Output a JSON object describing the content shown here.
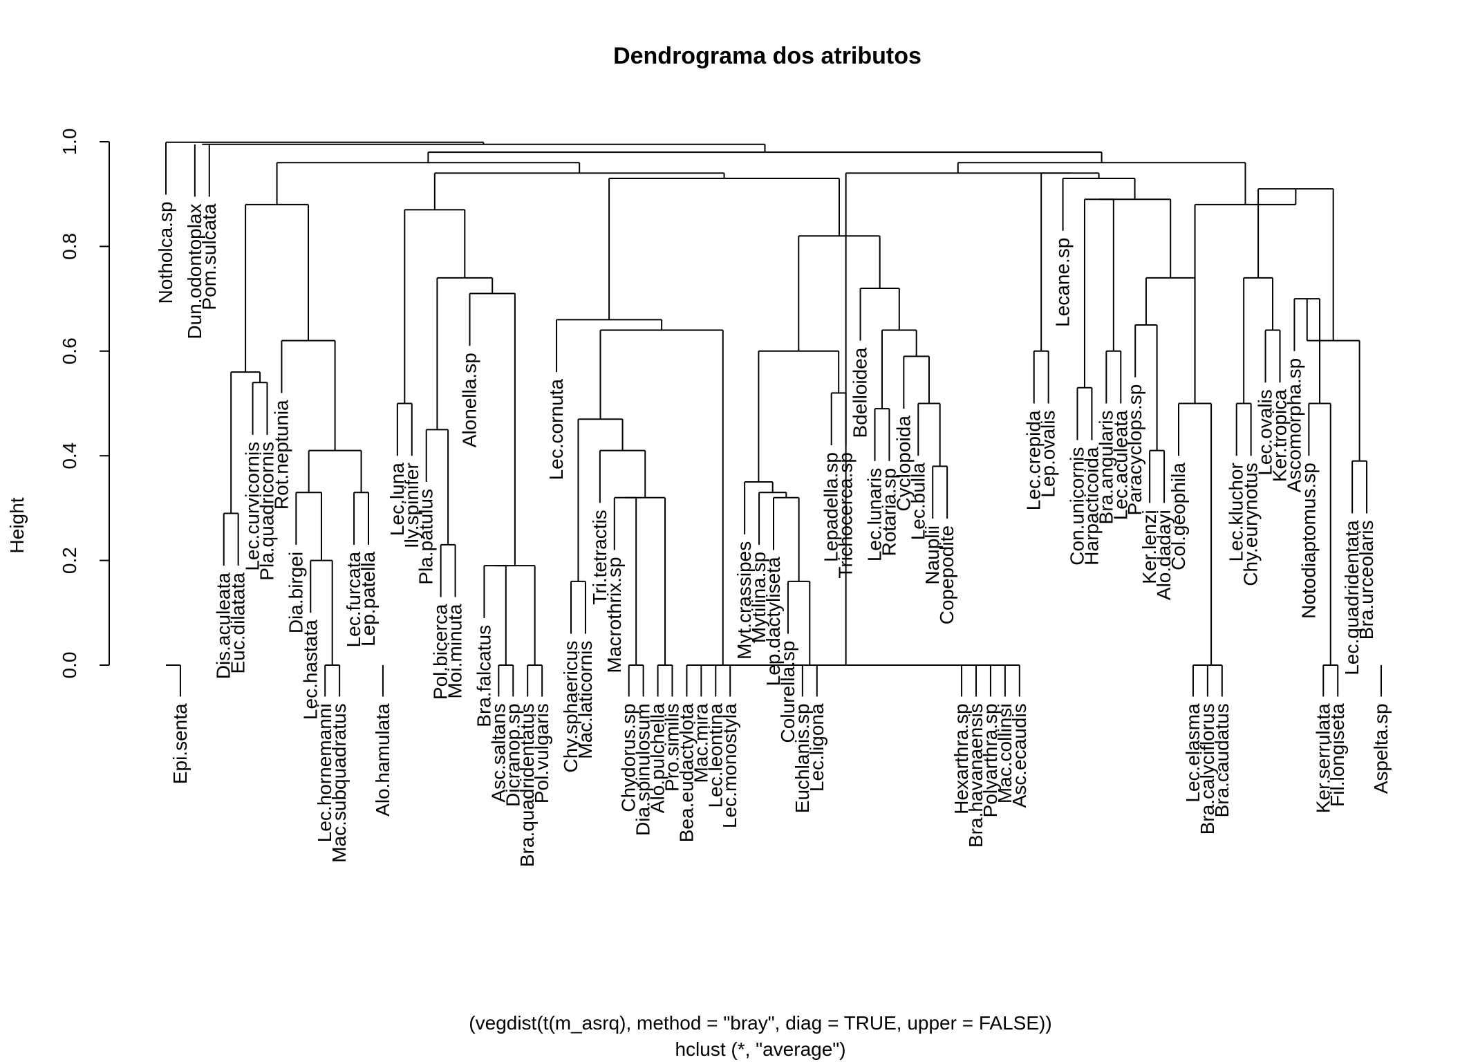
{
  "chart_data": {
    "type": "dendrogram",
    "title": "Dendrograma dos atributos",
    "ylabel": "Height",
    "xlabel_line1": "(vegdist(t(m_asrq), method = \"bray\", diag = TRUE, upper = FALSE))",
    "xlabel_line2": "hclust (*, \"average\")",
    "ylim": [
      0,
      1
    ],
    "yticks": [
      {
        "value": 0.0,
        "label": "0.0"
      },
      {
        "value": 0.2,
        "label": "0.2"
      },
      {
        "value": 0.4,
        "label": "0.4"
      },
      {
        "value": 0.6,
        "label": "0.6"
      },
      {
        "value": 0.8,
        "label": "0.8"
      },
      {
        "value": 1.0,
        "label": "1.0"
      }
    ],
    "leaves": [
      "Notholca.sp",
      "Epi.senta",
      "Dun.odontoplax",
      "Pom.sulcata",
      "Dis.aculeata",
      "Euc.dilatata",
      "Lec.curvicornis",
      "Pla.quadricornis",
      "Rot.neptunia",
      "Dia.birgei",
      "Lec.hastata",
      "Lec.hornemanni",
      "Mac.subquadratus",
      "Lec.furcata",
      "Lep.patella",
      "Alo.hamulata",
      "Lec.luna",
      "Ily.spinifer",
      "Pla.patulus",
      "Pol.bicerca",
      "Moi.minuta",
      "Alonella.sp",
      "Bra.falcatus",
      "Asc.saltans",
      "Dicranop.sp",
      "Bra.quadridentatus",
      "Pol.vulgaris",
      "Lec.cornuta",
      "Chy.sphaericus",
      "Mac.laticornis",
      "Tri.tetractis",
      "Macrothrix.sp",
      "Chydorus.sp",
      "Dia.spinulosum",
      "Alo.pulchella",
      "Pro.similis",
      "Bea.eudactylota",
      "Mac.mira",
      "Lec.leontina",
      "Lec.monostyla",
      "Myt.crassipes",
      "Mytilina.sp",
      "Lep.dactyliseta",
      "Colurella.sp",
      "Euchlanis.sp",
      "Lec.ligona",
      "Lepadella.sp",
      "Trichocerca.sp",
      "Bdelloidea",
      "Lec.lunaris",
      "Rotaria.sp",
      "Cyclopoida",
      "Lec.bulla",
      "Nauplii",
      "Copepodite",
      "Hexarthra.sp",
      "Bra.havanaensis",
      "Polyarthra.sp",
      "Mac.collinsi",
      "Asc.ecaudis",
      "Lec.crepida",
      "Lep.ovalis",
      "Lecane.sp",
      "Con.unicornis",
      "Harpacticoida",
      "Bra.angularis",
      "Lec.aculeata",
      "Paracyclops.sp",
      "Ker.lenzi",
      "Alo.dadayi",
      "Col.geophila",
      "Lec.elasma",
      "Bra.calyciflorus",
      "Bra.caudatus",
      "Lec.kluchor",
      "Chy.eurynotus",
      "Lec.ovalis",
      "Ker.tropica",
      "Ascomorpha.sp",
      "Notodiaptomus.sp",
      "Ker.serrulata",
      "Fil.longiseta",
      "Lec.quadridentata",
      "Bra.urceolaris",
      "Aspelta.sp"
    ],
    "merges": [
      [
        0,
        1,
        0.0
      ],
      [
        23,
        24,
        0.0
      ],
      [
        25,
        26,
        0.0
      ],
      [
        32,
        33,
        0.0
      ],
      [
        34,
        35,
        0.0
      ],
      [
        36,
        37,
        0.0
      ],
      [
        55,
        56,
        0.0
      ],
      [
        57,
        58,
        0.0
      ],
      [
        59,
        "m7",
        0.0
      ],
      [
        "m6",
        "m8",
        0.0
      ],
      [
        71,
        72,
        0.0
      ],
      [
        73,
        "m11",
        0.0
      ],
      [
        80,
        81,
        0.0
      ],
      [
        38,
        39,
        0.0
      ],
      [
        4,
        5,
        0.29
      ],
      [
        6,
        7,
        0.54
      ],
      [
        "m15",
        "m16",
        0.56
      ],
      [
        11,
        12,
        0.0
      ],
      [
        10,
        "m18",
        0.2
      ],
      [
        9,
        "m19",
        0.33
      ],
      [
        13,
        14,
        0.33
      ],
      [
        "m20",
        "m21",
        0.41
      ],
      [
        8,
        "m22",
        0.62
      ],
      [
        "m17",
        "m23",
        0.88
      ],
      [
        16,
        17,
        0.5
      ],
      [
        19,
        20,
        0.23
      ],
      [
        18,
        "m26",
        0.45
      ],
      [
        22,
        "m2",
        0.19
      ],
      [
        "m28",
        "m3",
        0.19
      ],
      [
        21,
        "m29",
        0.71
      ],
      [
        "m27",
        "m30",
        0.74
      ],
      [
        "m25",
        "m31",
        0.87
      ],
      [
        28,
        29,
        0.16
      ],
      [
        31,
        "m4",
        0.32
      ],
      [
        "m5",
        "m34",
        0.32
      ],
      [
        30,
        "m35",
        0.41
      ],
      [
        "m33",
        "m36",
        0.47
      ],
      [
        "m37",
        "m14",
        0.64
      ],
      [
        27,
        "m38",
        0.66
      ],
      [
        44,
        45,
        0.0
      ],
      [
        43,
        "m40",
        0.16
      ],
      [
        42,
        "m41",
        0.32
      ],
      [
        41,
        "m42",
        0.33
      ],
      [
        40,
        "m43",
        0.35
      ],
      [
        46,
        47,
        0.52
      ],
      [
        "m44",
        "m45",
        0.6
      ],
      [
        53,
        54,
        0.38
      ],
      [
        52,
        "m47",
        0.5
      ],
      [
        51,
        "m48",
        0.59
      ],
      [
        49,
        50,
        0.49
      ],
      [
        "m50",
        "m49",
        0.64
      ],
      [
        48,
        "m51",
        0.72
      ],
      [
        "m46",
        "m52",
        0.82
      ],
      [
        "m39",
        "m53",
        0.93
      ],
      [
        "m32",
        "m54",
        0.94
      ],
      [
        "m24",
        "m55",
        0.96
      ],
      [
        60,
        61,
        0.6
      ],
      [
        63,
        64,
        0.53
      ],
      [
        65,
        66,
        0.6
      ],
      [
        "m58",
        "m59",
        0.89
      ],
      [
        68,
        69,
        0.41
      ],
      [
        67,
        "m61",
        0.65
      ],
      [
        70,
        "m12",
        0.5
      ],
      [
        "m62",
        "m63",
        0.74
      ],
      [
        "m60",
        "m64",
        0.89
      ],
      [
        62,
        "m65",
        0.93
      ],
      [
        "m57",
        "m66",
        0.94
      ],
      [
        "m10",
        "m67",
        0.94
      ],
      [
        74,
        75,
        0.5
      ],
      [
        76,
        77,
        0.64
      ],
      [
        "m69",
        "m70",
        0.74
      ],
      [
        "m13",
        79,
        0.5
      ],
      [
        78,
        "m72",
        0.7
      ],
      [
        82,
        83,
        0.39
      ],
      [
        "m73",
        "m74",
        0.62
      ],
      [
        "m71",
        "m75",
        0.91
      ],
      [
        "m63",
        "m76",
        0.88
      ],
      [
        "m68",
        "m77",
        0.96
      ],
      [
        "m56",
        "m78",
        0.98
      ],
      [
        "m79",
        [
          2,
          3
        ],
        0.995
      ],
      [
        "m80",
        0,
        0.999
      ]
    ]
  }
}
